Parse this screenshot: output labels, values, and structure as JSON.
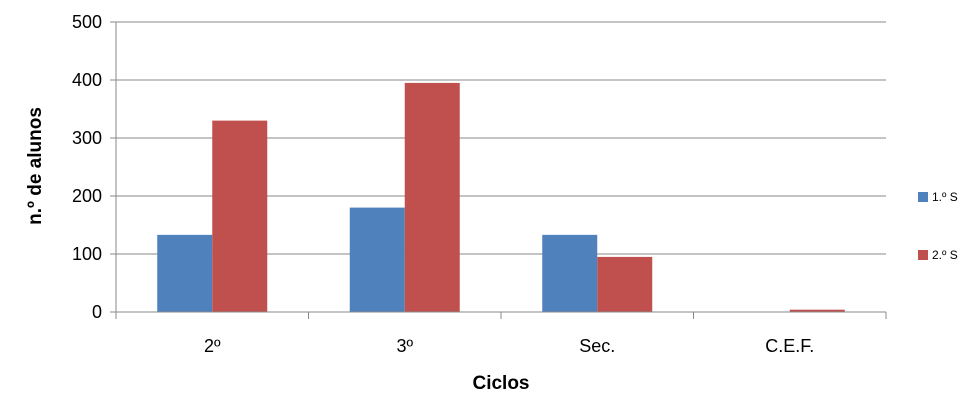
{
  "chart_data": {
    "type": "bar",
    "categories": [
      "2º",
      "3º",
      "Sec.",
      "C.E.F."
    ],
    "series": [
      {
        "name": "1.º S",
        "color": "#4F81BD",
        "values": [
          133,
          180,
          133,
          0
        ]
      },
      {
        "name": "2.º S",
        "color": "#C0504D",
        "values": [
          330,
          395,
          95,
          4
        ]
      }
    ],
    "xlabel": "Ciclos",
    "ylabel": "n.º de alunos",
    "ylim": [
      0,
      500
    ],
    "yticks": [
      0,
      100,
      200,
      300,
      400,
      500
    ],
    "grid": true,
    "legend_position": "right"
  }
}
